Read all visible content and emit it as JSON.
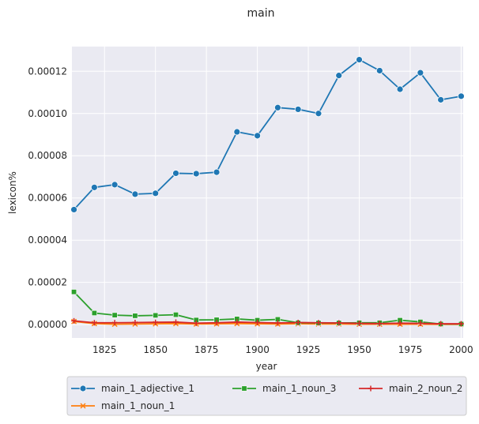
{
  "chart_data": {
    "type": "line",
    "title": "main",
    "xlabel": "year",
    "ylabel": "lexicon%",
    "xlim": [
      1809,
      2001
    ],
    "ylim": [
      -6.3e-06,
      0.0001317
    ],
    "x_ticks": [
      1825,
      1850,
      1875,
      1900,
      1925,
      1950,
      1975,
      2000
    ],
    "y_ticks": [
      0,
      2e-05,
      4e-05,
      6e-05,
      8e-05,
      0.0001,
      0.00012
    ],
    "y_tick_labels": [
      "0.00000",
      "0.00002",
      "0.00004",
      "0.00006",
      "0.00008",
      "0.00010",
      "0.00012"
    ],
    "grid": true,
    "legend_position": "bottom",
    "x": [
      1810,
      1820,
      1830,
      1840,
      1850,
      1860,
      1870,
      1880,
      1890,
      1900,
      1910,
      1920,
      1930,
      1940,
      1950,
      1960,
      1970,
      1980,
      1990,
      2000
    ],
    "series": [
      {
        "name": "main_1_adjective_1",
        "color": "#1f77b4",
        "marker": "circle",
        "values": [
          5.45e-05,
          6.5e-05,
          6.63e-05,
          6.18e-05,
          6.22e-05,
          7.17e-05,
          7.15e-05,
          7.22e-05,
          9.13e-05,
          8.95e-05,
          0.0001028,
          0.000102,
          0.0001,
          0.000118,
          0.0001255,
          0.0001203,
          0.0001115,
          0.0001193,
          0.0001065,
          0.0001082
        ]
      },
      {
        "name": "main_1_noun_1",
        "color": "#ff7f0e",
        "marker": "x",
        "values": [
          1.5e-06,
          5e-07,
          2e-07,
          3e-07,
          4e-07,
          5e-07,
          3e-07,
          4e-07,
          5e-07,
          4e-07,
          3e-07,
          4e-07,
          3e-07,
          3e-07,
          2e-07,
          2e-07,
          2e-07,
          2e-07,
          1e-07,
          1e-07
        ]
      },
      {
        "name": "main_1_noun_3",
        "color": "#2ca02c",
        "marker": "square",
        "values": [
          1.55e-05,
          5.5e-06,
          4.5e-06,
          4.2e-06,
          4.4e-06,
          4.7e-06,
          2.2e-06,
          2.3e-06,
          2.7e-06,
          2.1e-06,
          2.5e-06,
          9e-07,
          8e-07,
          8e-07,
          9e-07,
          9e-07,
          2.1e-06,
          1.3e-06,
          3e-07,
          3e-07
        ]
      },
      {
        "name": "main_2_noun_2",
        "color": "#d62728",
        "marker": "plus",
        "values": [
          1.8e-06,
          9e-07,
          9e-07,
          1e-06,
          1.1e-06,
          1.2e-06,
          7e-07,
          9e-07,
          1.2e-06,
          1e-06,
          8e-07,
          1e-06,
          9e-07,
          8e-07,
          6e-07,
          5e-07,
          7e-07,
          6e-07,
          4e-07,
          4e-07
        ]
      }
    ]
  }
}
